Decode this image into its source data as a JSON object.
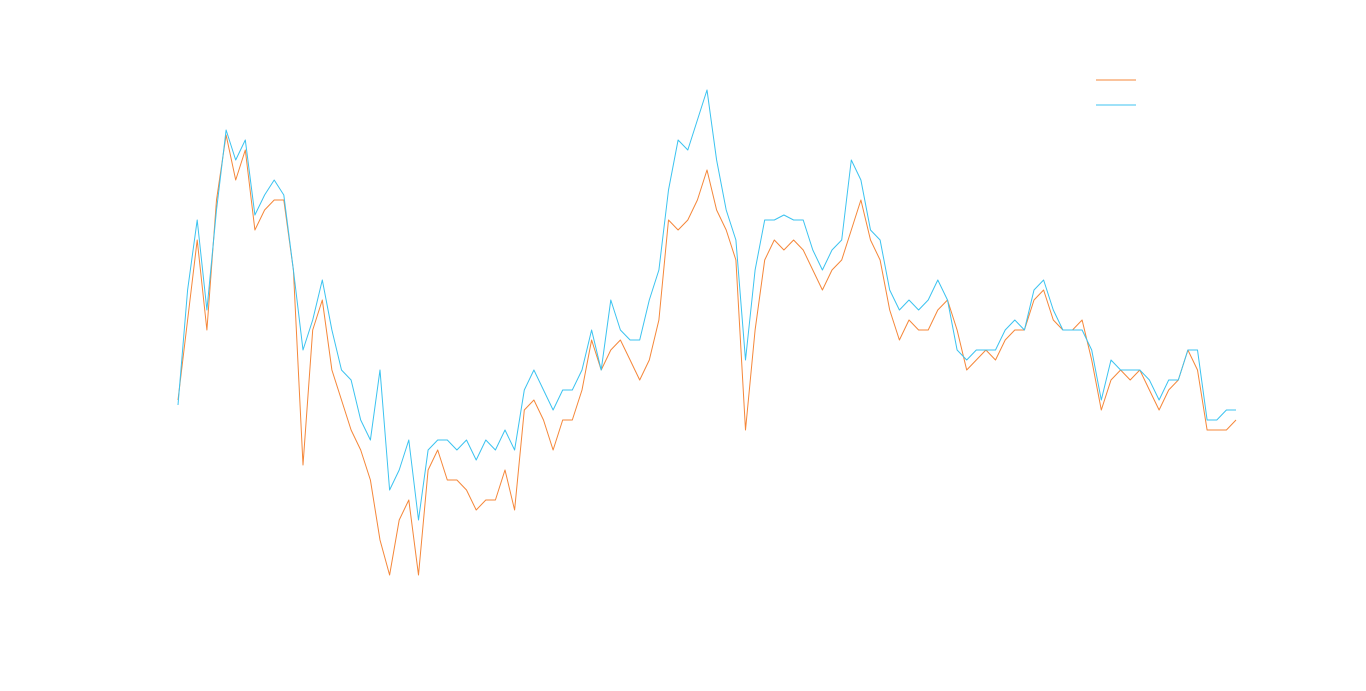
{
  "chart_data": {
    "type": "line",
    "ylim": [
      0,
      560
    ],
    "legend": "top-right",
    "series": [
      {
        "color": "#f5873a",
        "values": [
          220,
          300,
          380,
          290,
          420,
          485,
          440,
          470,
          390,
          410,
          420,
          420,
          350,
          155,
          290,
          320,
          250,
          220,
          190,
          170,
          140,
          80,
          45,
          100,
          120,
          45,
          150,
          170,
          140,
          140,
          130,
          110,
          120,
          120,
          150,
          110,
          210,
          220,
          200,
          170,
          200,
          200,
          230,
          280,
          250,
          270,
          280,
          260,
          240,
          260,
          300,
          400,
          390,
          400,
          420,
          450,
          410,
          390,
          360,
          190,
          290,
          360,
          380,
          370,
          380,
          370,
          350,
          330,
          350,
          360,
          390,
          420,
          380,
          360,
          310,
          280,
          300,
          290,
          290,
          310,
          320,
          290,
          250,
          260,
          270,
          260,
          280,
          290,
          290,
          320,
          330,
          300,
          290,
          290,
          300,
          260,
          210,
          240,
          250,
          240,
          250,
          230,
          210,
          230,
          240,
          270,
          250,
          190,
          190,
          190,
          200
        ]
      },
      {
        "color": "#3cc3f0",
        "values": [
          215,
          330,
          400,
          310,
          410,
          490,
          460,
          480,
          405,
          425,
          440,
          425,
          350,
          270,
          300,
          340,
          290,
          250,
          240,
          200,
          180,
          250,
          130,
          150,
          180,
          100,
          170,
          180,
          180,
          170,
          180,
          160,
          180,
          170,
          190,
          170,
          230,
          250,
          230,
          210,
          230,
          230,
          250,
          290,
          250,
          320,
          290,
          280,
          280,
          320,
          350,
          430,
          480,
          470,
          500,
          530,
          460,
          410,
          380,
          260,
          350,
          400,
          400,
          405,
          400,
          400,
          370,
          350,
          370,
          380,
          460,
          440,
          390,
          380,
          330,
          310,
          320,
          310,
          320,
          340,
          320,
          270,
          260,
          270,
          270,
          270,
          290,
          300,
          290,
          330,
          340,
          310,
          290,
          290,
          290,
          270,
          220,
          260,
          250,
          250,
          250,
          240,
          220,
          240,
          240,
          270,
          270,
          200,
          200,
          210,
          210
        ]
      }
    ]
  }
}
